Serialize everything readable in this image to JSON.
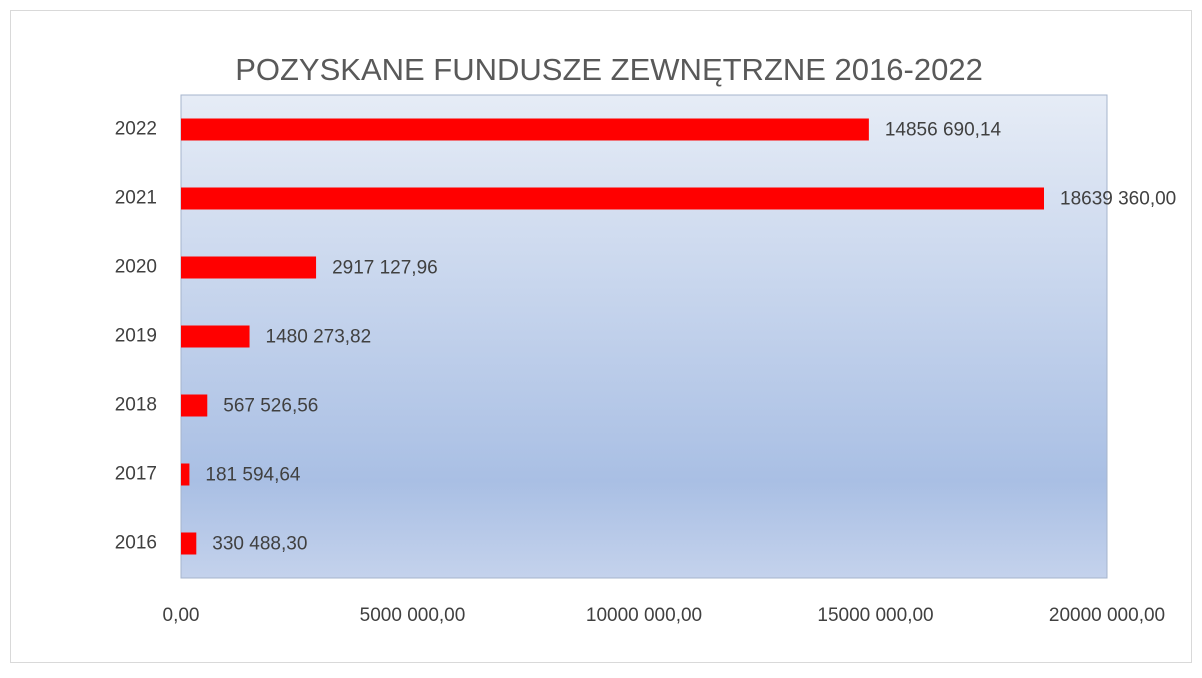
{
  "chart_data": {
    "type": "bar",
    "orientation": "horizontal",
    "title": "POZYSKANE FUNDUSZE ZEWNĘTRZNE 2016-2022",
    "categories": [
      "2022",
      "2021",
      "2020",
      "2019",
      "2018",
      "2017",
      "2016"
    ],
    "values": [
      14856690.14,
      18639360,
      2917127.96,
      1480273.82,
      567526.56,
      181594.64,
      330488.3
    ],
    "value_labels": [
      "14856 690,14",
      "18639 360,00",
      "2917 127,96",
      "1480 273,82",
      "567 526,56",
      "181 594,64",
      "330 488,30"
    ],
    "color": "#ff0000",
    "xlim": [
      0,
      20000000
    ],
    "xticks": [
      {
        "value": 0,
        "label": "0,00"
      },
      {
        "value": 5000000,
        "label": "5000 000,00"
      },
      {
        "value": 10000000,
        "label": "10000 000,00"
      },
      {
        "value": 15000000,
        "label": "15000 000,00"
      },
      {
        "value": 20000000,
        "label": "20000 000,00"
      }
    ]
  }
}
